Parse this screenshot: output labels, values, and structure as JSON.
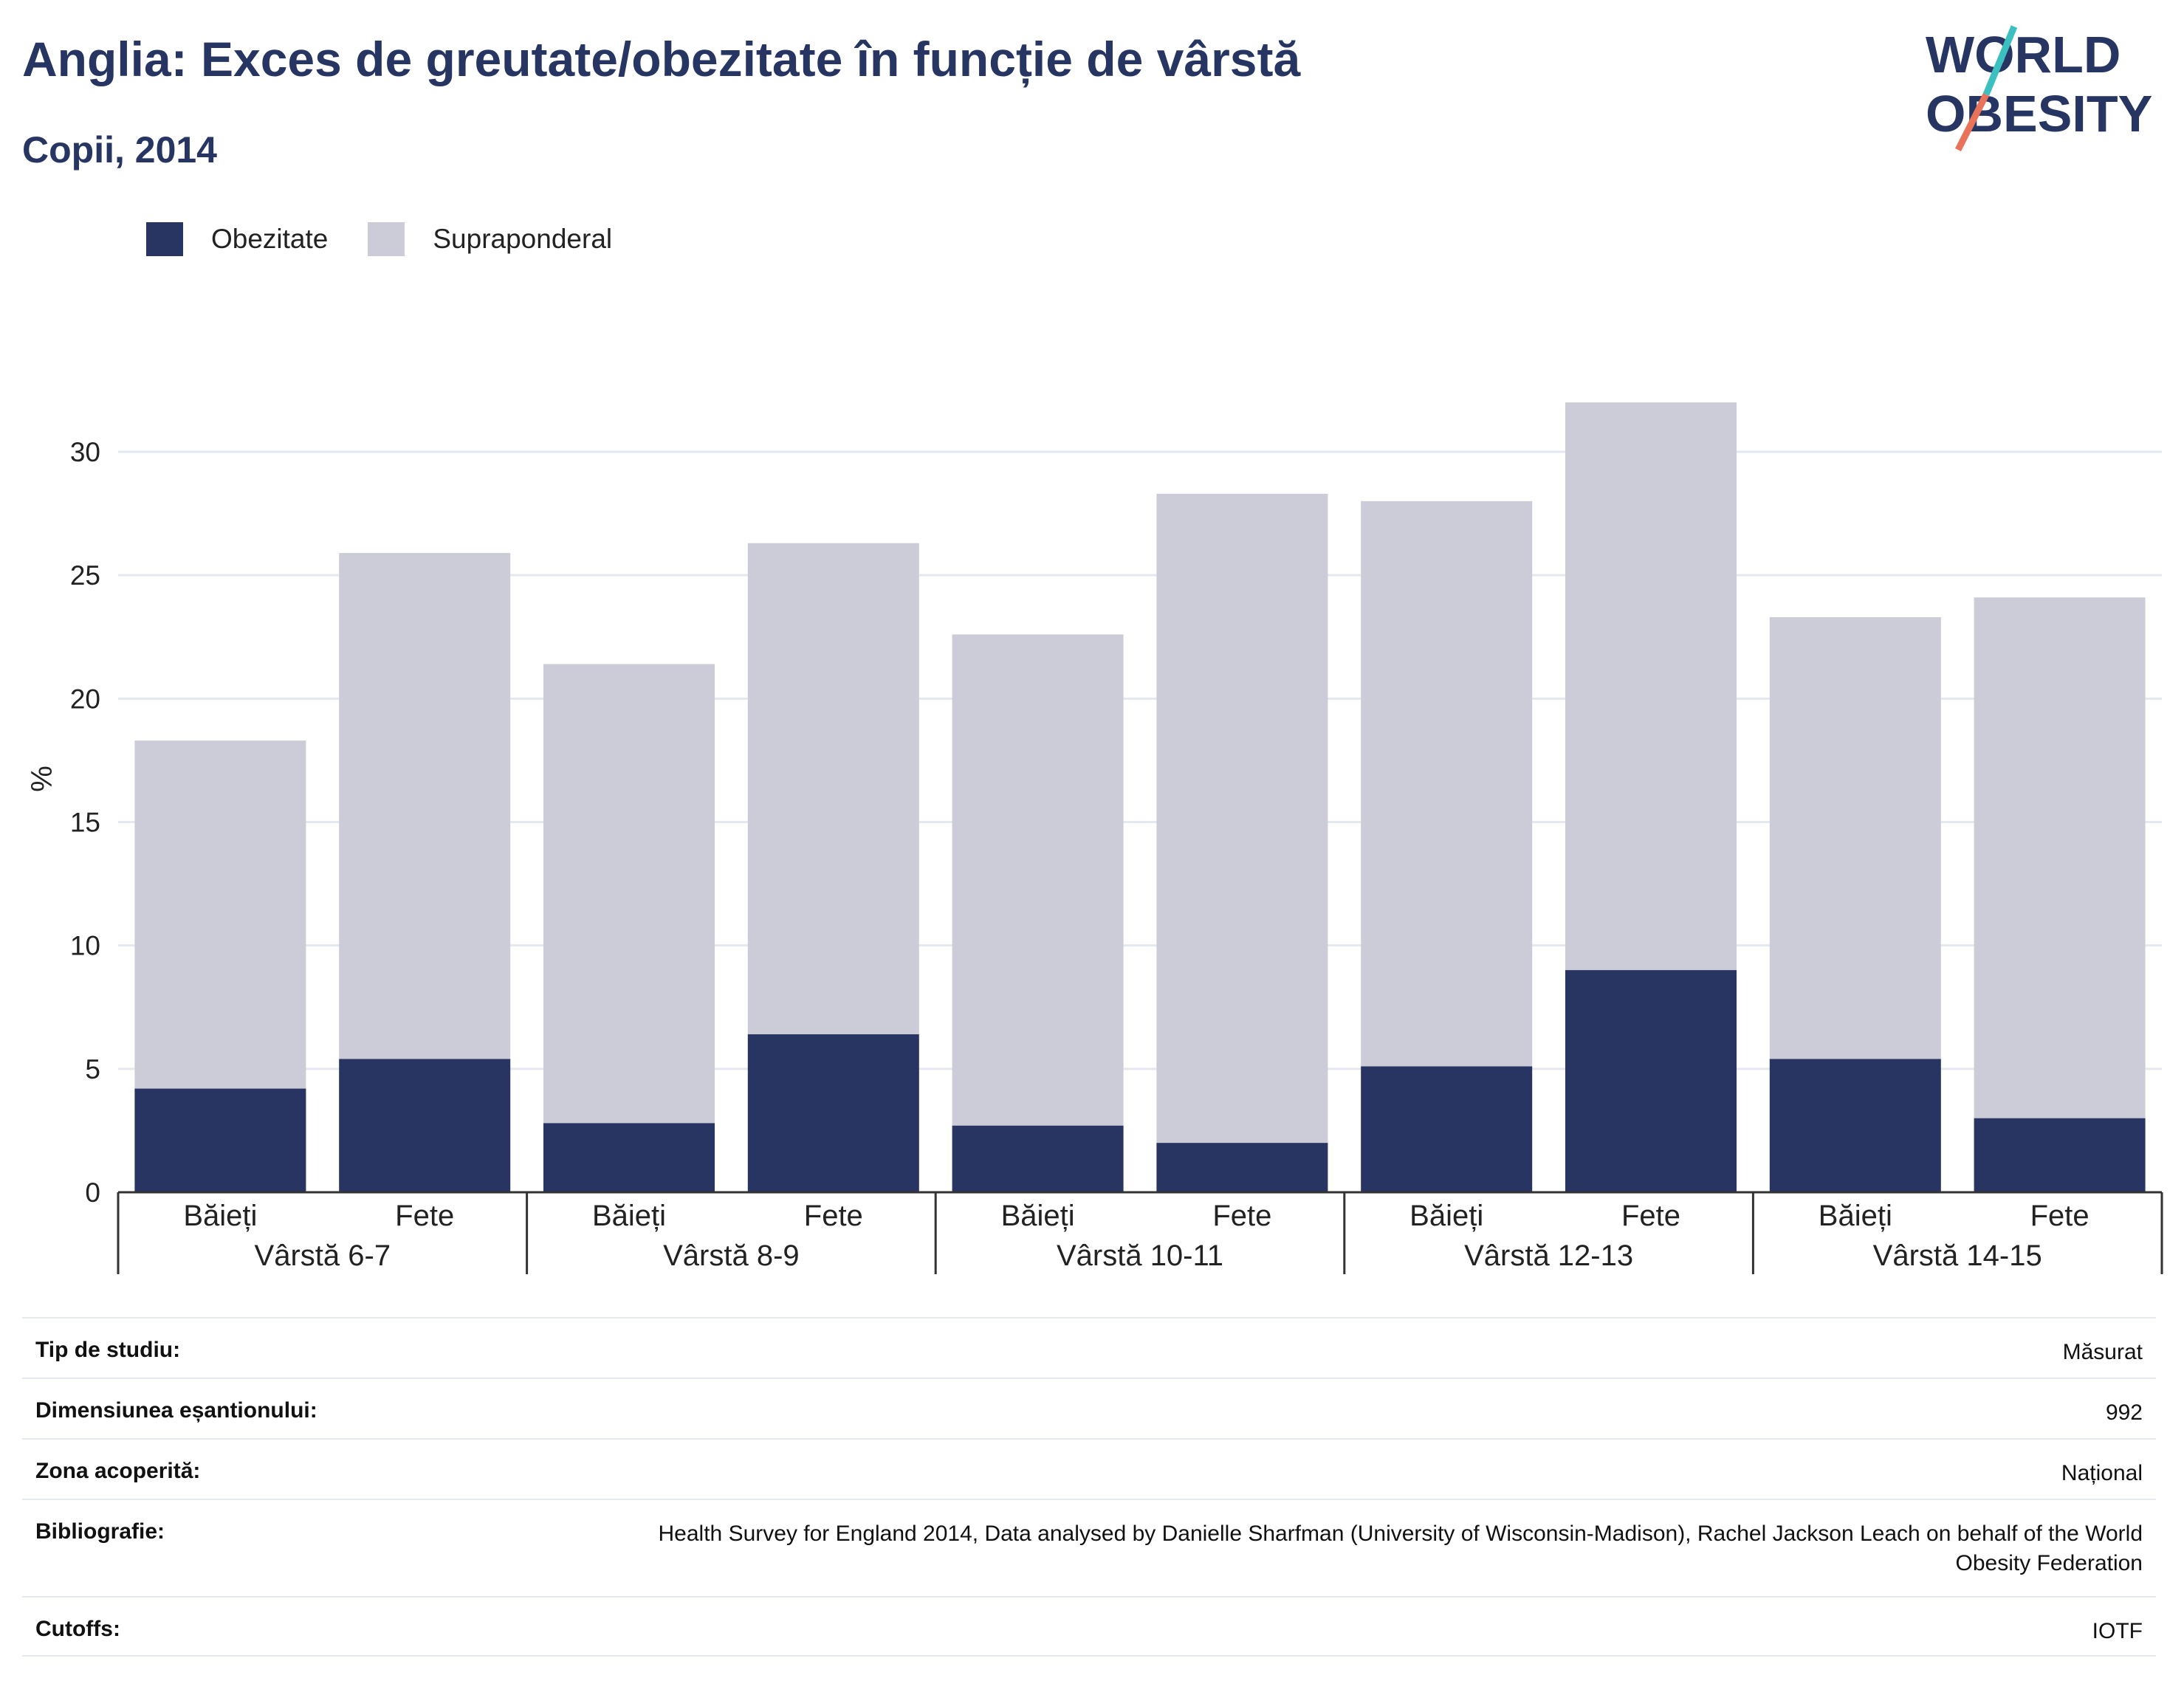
{
  "title": "Anglia: Exces de greutate/obezitate în funcție de vârstă",
  "subtitle": "Copii, 2014",
  "logo": {
    "line1": "WORLD",
    "line2": "OBESITY",
    "accent_teal": "#3bbfbf",
    "accent_red": "#e8735a"
  },
  "colors": {
    "obesity": "#283562",
    "overweight": "#cbccd8",
    "grid": "#e6e8ef",
    "axis": "#333333"
  },
  "legend": [
    {
      "label": "Obezitate",
      "color": "#283562"
    },
    {
      "label": "Supraponderal",
      "color": "#cbccd8"
    }
  ],
  "chart_data": {
    "type": "bar",
    "stacked": true,
    "ylabel": "%",
    "ylim": [
      0,
      33
    ],
    "yticks": [
      0,
      5,
      10,
      15,
      20,
      25,
      30
    ],
    "groups": [
      "Vârstă 6-7",
      "Vârstă 8-9",
      "Vârstă 10-11",
      "Vârstă 12-13",
      "Vârstă 14-15"
    ],
    "subcategories": [
      "Băieți",
      "Fete"
    ],
    "series": [
      {
        "name": "Obezitate",
        "values": [
          4.2,
          5.4,
          2.8,
          6.4,
          2.7,
          2.0,
          5.1,
          9.0,
          5.4,
          3.0
        ]
      },
      {
        "name": "Supraponderal",
        "values": [
          14.1,
          20.5,
          18.6,
          19.9,
          19.9,
          26.3,
          22.9,
          23.0,
          17.9,
          21.1
        ]
      }
    ],
    "totals": [
      18.3,
      25.9,
      21.4,
      26.3,
      22.6,
      28.3,
      28.0,
      32.0,
      23.3,
      24.1
    ]
  },
  "info": [
    {
      "key": "Tip de studiu:",
      "value": "Măsurat"
    },
    {
      "key": "Dimensiunea eșantionului:",
      "value": "992"
    },
    {
      "key": "Zona acoperită:",
      "value": "Național"
    },
    {
      "key": "Bibliografie:",
      "value": "Health Survey for England 2014, Data analysed by Danielle Sharfman (University of Wisconsin-Madison), Rachel Jackson Leach on behalf of the World Obesity Federation"
    },
    {
      "key": "Cutoffs:",
      "value": "IOTF"
    }
  ]
}
